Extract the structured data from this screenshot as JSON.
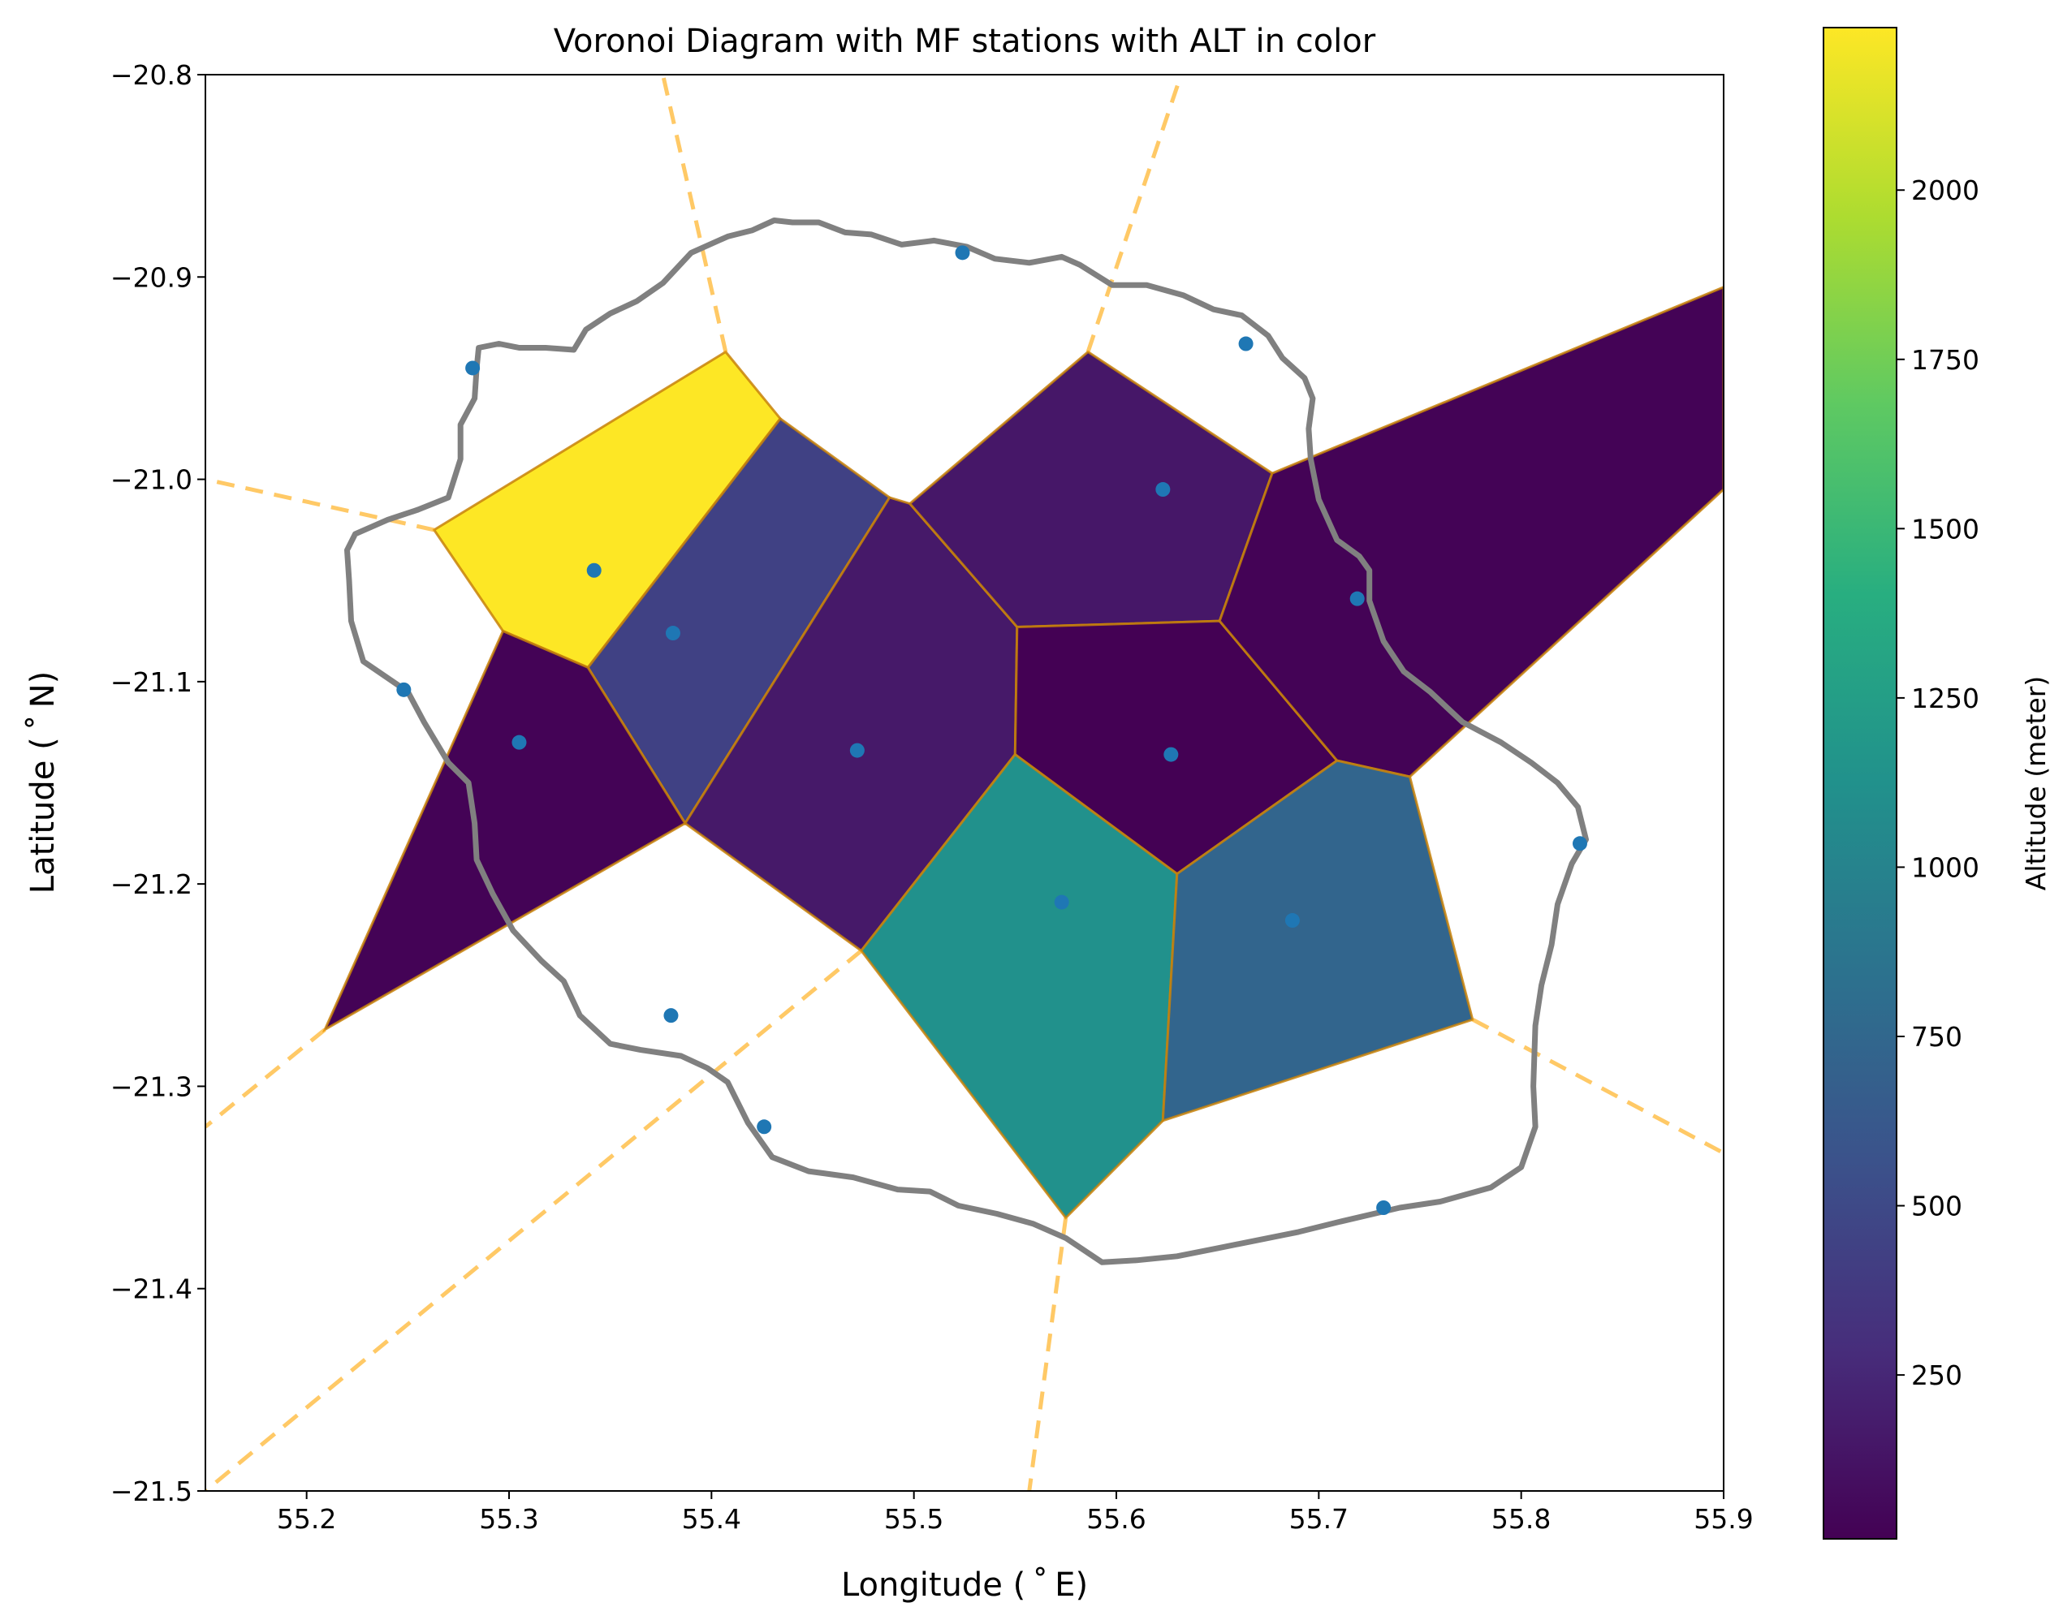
{
  "chart_data": {
    "type": "voronoi",
    "title": "Voronoi Diagram with MF stations with ALT in color",
    "xlabel": "Longitude ($^\\circ$E)",
    "ylabel": "Latitude ($^\\circ$N)",
    "xlabel_display": "Longitude ( ˚ E)",
    "ylabel_display": "Latitude ( ˚ N)",
    "xlim": [
      55.15,
      55.9
    ],
    "ylim": [
      -21.5,
      -20.8
    ],
    "xticks": [
      55.2,
      55.3,
      55.4,
      55.5,
      55.6,
      55.7,
      55.8,
      55.9
    ],
    "xtick_labels": [
      "55.2",
      "55.3",
      "55.4",
      "55.5",
      "55.6",
      "55.7",
      "55.8",
      "55.9"
    ],
    "yticks": [
      -20.8,
      -20.9,
      -21.0,
      -21.1,
      -21.2,
      -21.3,
      -21.4,
      -21.5
    ],
    "ytick_labels": [
      "−20.8",
      "−20.9",
      "−21.0",
      "−21.1",
      "−21.2",
      "−21.3",
      "−21.4",
      "−21.5"
    ],
    "grid": false,
    "colorbar": {
      "label": "Altitude (meter)",
      "colormap": "viridis",
      "range": [
        8,
        2240
      ],
      "ticks": [
        250,
        500,
        750,
        1000,
        1250,
        1500,
        1750,
        2000
      ],
      "tick_labels": [
        "250",
        "500",
        "750",
        "1000",
        "1250",
        "1500",
        "1750",
        "2000"
      ]
    },
    "colors": {
      "station": "#1f77b4",
      "coastline": "#808080",
      "ridge": "#ffa500",
      "cell_edge": "#c8820a"
    },
    "stations": [
      {
        "lon": 55.524,
        "lat": -20.888,
        "alt": null
      },
      {
        "lon": 55.664,
        "lat": -20.933,
        "alt": null
      },
      {
        "lon": 55.282,
        "lat": -20.945,
        "alt": null
      },
      {
        "lon": 55.623,
        "lat": -21.005,
        "alt": 150
      },
      {
        "lon": 55.342,
        "lat": -21.045,
        "alt": 2240
      },
      {
        "lon": 55.381,
        "lat": -21.076,
        "alt": 440
      },
      {
        "lon": 55.719,
        "lat": -21.059,
        "alt": 20
      },
      {
        "lon": 55.248,
        "lat": -21.104,
        "alt": null
      },
      {
        "lon": 55.305,
        "lat": -21.13,
        "alt": 20
      },
      {
        "lon": 55.472,
        "lat": -21.134,
        "alt": 160
      },
      {
        "lon": 55.627,
        "lat": -21.136,
        "alt": 10
      },
      {
        "lon": 55.829,
        "lat": -21.18,
        "alt": null
      },
      {
        "lon": 55.573,
        "lat": -21.209,
        "alt": 1120
      },
      {
        "lon": 55.687,
        "lat": -21.218,
        "alt": 730
      },
      {
        "lon": 55.38,
        "lat": -21.265,
        "alt": null
      },
      {
        "lon": 55.426,
        "lat": -21.32,
        "alt": null
      },
      {
        "lon": 55.732,
        "lat": -21.36,
        "alt": null
      }
    ],
    "cells": [
      {
        "alt": 2240,
        "vertices": [
          [
            55.263,
            -21.025
          ],
          [
            55.407,
            -20.937
          ],
          [
            55.434,
            -20.97
          ],
          [
            55.339,
            -21.093
          ],
          [
            55.297,
            -21.075
          ]
        ]
      },
      {
        "alt": 440,
        "vertices": [
          [
            55.339,
            -21.093
          ],
          [
            55.434,
            -20.97
          ],
          [
            55.488,
            -21.009
          ],
          [
            55.387,
            -21.17
          ]
        ]
      },
      {
        "alt": 20,
        "vertices": [
          [
            55.297,
            -21.075
          ],
          [
            55.339,
            -21.093
          ],
          [
            55.387,
            -21.17
          ],
          [
            55.209,
            -21.272
          ]
        ]
      },
      {
        "alt": 160,
        "vertices": [
          [
            55.387,
            -21.17
          ],
          [
            55.488,
            -21.009
          ],
          [
            55.498,
            -21.012
          ],
          [
            55.551,
            -21.073
          ],
          [
            55.55,
            -21.136
          ],
          [
            55.474,
            -21.233
          ]
        ]
      },
      {
        "alt": 150,
        "vertices": [
          [
            55.498,
            -21.012
          ],
          [
            55.586,
            -20.937
          ],
          [
            55.677,
            -20.997
          ],
          [
            55.651,
            -21.07
          ],
          [
            55.551,
            -21.073
          ]
        ]
      },
      {
        "alt": 10,
        "vertices": [
          [
            55.551,
            -21.073
          ],
          [
            55.651,
            -21.07
          ],
          [
            55.709,
            -21.139
          ],
          [
            55.63,
            -21.195
          ],
          [
            55.55,
            -21.136
          ]
        ]
      },
      {
        "alt": 20,
        "vertices": [
          [
            55.677,
            -20.997
          ],
          [
            55.9,
            -20.905
          ],
          [
            55.9,
            -21.005
          ],
          [
            55.745,
            -21.147
          ],
          [
            55.709,
            -21.139
          ],
          [
            55.651,
            -21.07
          ]
        ]
      },
      {
        "alt": 1120,
        "vertices": [
          [
            55.474,
            -21.233
          ],
          [
            55.55,
            -21.136
          ],
          [
            55.63,
            -21.195
          ],
          [
            55.623,
            -21.317
          ],
          [
            55.575,
            -21.365
          ]
        ]
      },
      {
        "alt": 730,
        "vertices": [
          [
            55.63,
            -21.195
          ],
          [
            55.709,
            -21.139
          ],
          [
            55.745,
            -21.147
          ],
          [
            55.776,
            -21.267
          ],
          [
            55.623,
            -21.317
          ]
        ]
      }
    ],
    "infinite_ridges": [
      [
        [
          55.407,
          -20.937
        ],
        [
          55.376,
          -20.8
        ]
      ],
      [
        [
          55.586,
          -20.937
        ],
        [
          55.632,
          -20.8
        ]
      ],
      [
        [
          55.263,
          -21.025
        ],
        [
          55.15,
          -21.0
        ]
      ],
      [
        [
          55.209,
          -21.272
        ],
        [
          55.15,
          -21.32
        ]
      ],
      [
        [
          55.474,
          -21.233
        ],
        [
          55.15,
          -21.5
        ]
      ],
      [
        [
          55.575,
          -21.365
        ],
        [
          55.557,
          -21.5
        ]
      ],
      [
        [
          55.776,
          -21.267
        ],
        [
          55.9,
          -21.333
        ]
      ]
    ],
    "coastline": [
      [
        55.431,
        -20.872
      ],
      [
        55.44,
        -20.873
      ],
      [
        55.453,
        -20.873
      ],
      [
        55.466,
        -20.878
      ],
      [
        55.479,
        -20.879
      ],
      [
        55.494,
        -20.884
      ],
      [
        55.51,
        -20.882
      ],
      [
        55.526,
        -20.885
      ],
      [
        55.54,
        -20.891
      ],
      [
        55.557,
        -20.893
      ],
      [
        55.573,
        -20.89
      ],
      [
        55.582,
        -20.894
      ],
      [
        55.598,
        -20.904
      ],
      [
        55.615,
        -20.904
      ],
      [
        55.633,
        -20.909
      ],
      [
        55.648,
        -20.916
      ],
      [
        55.662,
        -20.919
      ],
      [
        55.675,
        -20.929
      ],
      [
        55.682,
        -20.94
      ],
      [
        55.693,
        -20.95
      ],
      [
        55.697,
        -20.96
      ],
      [
        55.695,
        -20.975
      ],
      [
        55.696,
        -20.99
      ],
      [
        55.7,
        -21.01
      ],
      [
        55.709,
        -21.03
      ],
      [
        55.72,
        -21.038
      ],
      [
        55.725,
        -21.045
      ],
      [
        55.725,
        -21.06
      ],
      [
        55.732,
        -21.08
      ],
      [
        55.742,
        -21.095
      ],
      [
        55.755,
        -21.105
      ],
      [
        55.771,
        -21.12
      ],
      [
        55.79,
        -21.13
      ],
      [
        55.805,
        -21.14
      ],
      [
        55.818,
        -21.15
      ],
      [
        55.828,
        -21.162
      ],
      [
        55.832,
        -21.178
      ],
      [
        55.825,
        -21.19
      ],
      [
        55.818,
        -21.21
      ],
      [
        55.815,
        -21.23
      ],
      [
        55.81,
        -21.25
      ],
      [
        55.807,
        -21.27
      ],
      [
        55.806,
        -21.3
      ],
      [
        55.807,
        -21.32
      ],
      [
        55.8,
        -21.34
      ],
      [
        55.785,
        -21.35
      ],
      [
        55.76,
        -21.357
      ],
      [
        55.74,
        -21.36
      ],
      [
        55.71,
        -21.367
      ],
      [
        55.69,
        -21.372
      ],
      [
        55.67,
        -21.376
      ],
      [
        55.65,
        -21.38
      ],
      [
        55.63,
        -21.384
      ],
      [
        55.61,
        -21.386
      ],
      [
        55.593,
        -21.387
      ],
      [
        55.575,
        -21.375
      ],
      [
        55.559,
        -21.368
      ],
      [
        55.541,
        -21.363
      ],
      [
        55.522,
        -21.359
      ],
      [
        55.508,
        -21.352
      ],
      [
        55.492,
        -21.351
      ],
      [
        55.47,
        -21.345
      ],
      [
        55.448,
        -21.342
      ],
      [
        55.43,
        -21.335
      ],
      [
        55.418,
        -21.318
      ],
      [
        55.408,
        -21.298
      ],
      [
        55.398,
        -21.291
      ],
      [
        55.385,
        -21.285
      ],
      [
        55.365,
        -21.282
      ],
      [
        55.35,
        -21.279
      ],
      [
        55.335,
        -21.265
      ],
      [
        55.327,
        -21.248
      ],
      [
        55.316,
        -21.238
      ],
      [
        55.302,
        -21.223
      ],
      [
        55.292,
        -21.205
      ],
      [
        55.284,
        -21.188
      ],
      [
        55.283,
        -21.17
      ],
      [
        55.28,
        -21.15
      ],
      [
        55.27,
        -21.14
      ],
      [
        55.258,
        -21.12
      ],
      [
        55.25,
        -21.105
      ],
      [
        55.228,
        -21.09
      ],
      [
        55.222,
        -21.07
      ],
      [
        55.221,
        -21.05
      ],
      [
        55.22,
        -21.035
      ],
      [
        55.224,
        -21.027
      ],
      [
        55.24,
        -21.02
      ],
      [
        55.255,
        -21.015
      ],
      [
        55.27,
        -21.009
      ],
      [
        55.276,
        -20.99
      ],
      [
        55.276,
        -20.973
      ],
      [
        55.283,
        -20.96
      ],
      [
        55.284,
        -20.945
      ],
      [
        55.285,
        -20.935
      ],
      [
        55.295,
        -20.933
      ],
      [
        55.305,
        -20.935
      ],
      [
        55.318,
        -20.935
      ],
      [
        55.332,
        -20.936
      ],
      [
        55.338,
        -20.926
      ],
      [
        55.35,
        -20.918
      ],
      [
        55.363,
        -20.912
      ],
      [
        55.376,
        -20.903
      ],
      [
        55.39,
        -20.888
      ],
      [
        55.408,
        -20.88
      ],
      [
        55.42,
        -20.877
      ],
      [
        55.431,
        -20.872
      ]
    ]
  }
}
